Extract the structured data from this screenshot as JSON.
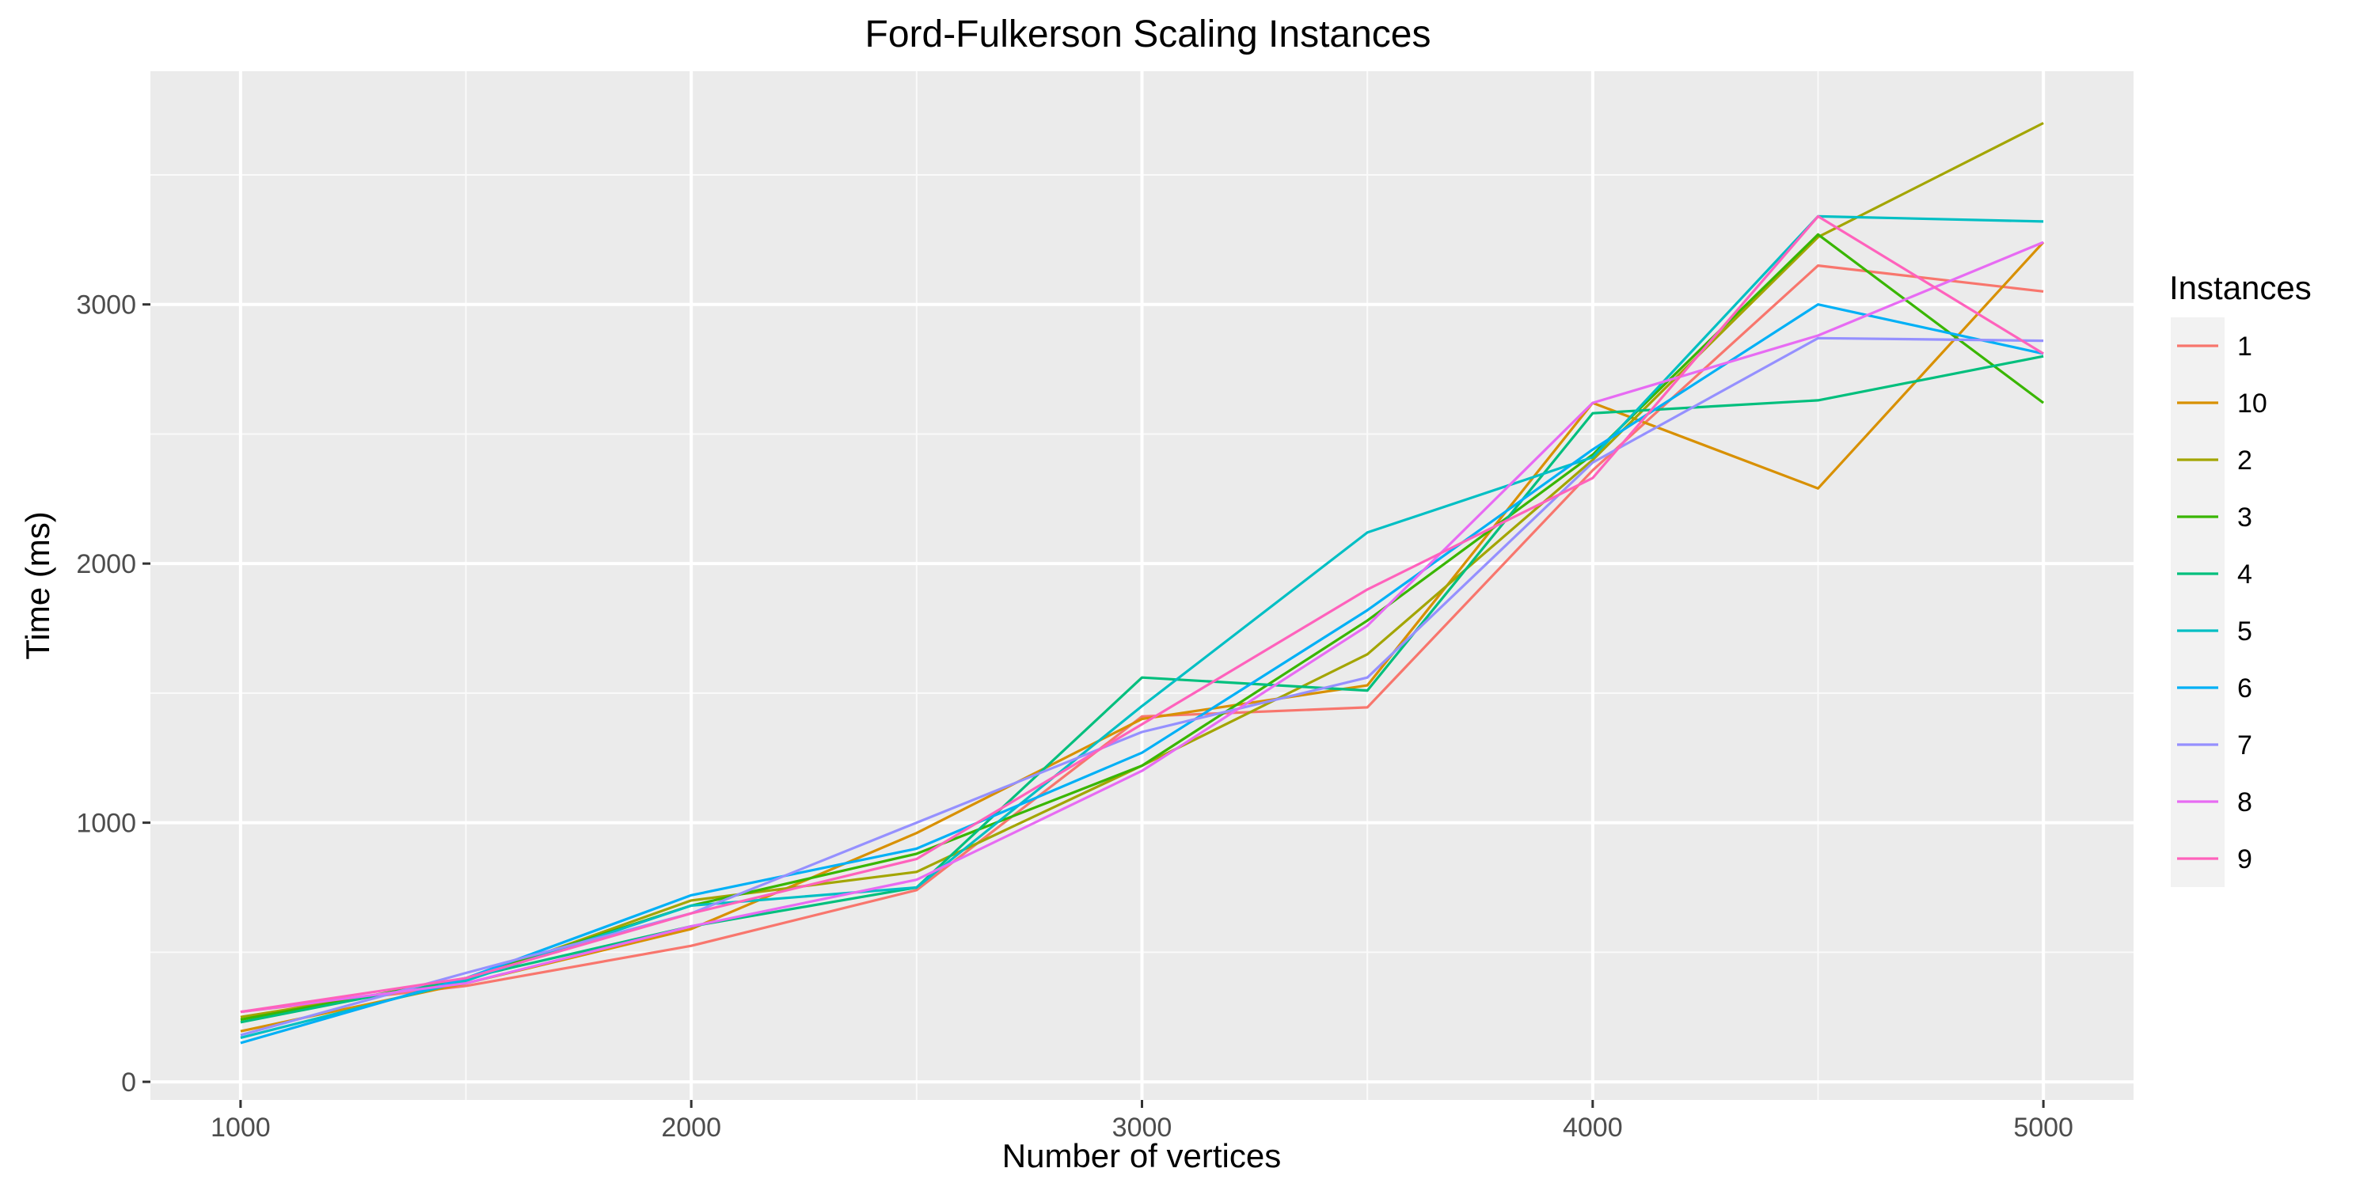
{
  "chart_data": {
    "type": "line",
    "title": "Ford-Fulkerson Scaling Instances",
    "xlabel": "Number of vertices",
    "ylabel": "Time (ms)",
    "xlim": [
      800,
      5200
    ],
    "ylim": [
      -70,
      3900
    ],
    "x_ticks": [
      1000,
      2000,
      3000,
      4000,
      5000
    ],
    "x_minor_ticks": [
      1500,
      2500,
      3500,
      4500
    ],
    "y_ticks": [
      0,
      1000,
      2000,
      3000
    ],
    "y_minor_ticks": [
      500,
      1500,
      2500,
      3500
    ],
    "grid": true,
    "background": "#ebebeb",
    "legend_title": "Instances",
    "legend_position": "right",
    "x": [
      1000,
      1500,
      2000,
      2500,
      3000,
      3500,
      4000,
      4500,
      5000
    ],
    "series": [
      {
        "name": "1",
        "color": "#F8766D",
        "values": [
          270,
          370,
          525,
          740,
          1410,
          1445,
          2360,
          3150,
          3050
        ]
      },
      {
        "name": "10",
        "color": "#D89000",
        "values": [
          195,
          380,
          590,
          960,
          1400,
          1530,
          2620,
          2290,
          3240
        ]
      },
      {
        "name": "2",
        "color": "#A3A500",
        "values": [
          250,
          390,
          700,
          810,
          1220,
          1650,
          2400,
          3260,
          3700
        ]
      },
      {
        "name": "3",
        "color": "#39B600",
        "values": [
          240,
          400,
          680,
          880,
          1220,
          1780,
          2420,
          3270,
          2620
        ]
      },
      {
        "name": "4",
        "color": "#00BF7D",
        "values": [
          230,
          400,
          600,
          750,
          1560,
          1510,
          2580,
          2630,
          2800
        ]
      },
      {
        "name": "5",
        "color": "#00BFC4",
        "values": [
          170,
          390,
          680,
          750,
          1450,
          2120,
          2410,
          3340,
          3320
        ]
      },
      {
        "name": "6",
        "color": "#00B0F6",
        "values": [
          150,
          400,
          720,
          900,
          1270,
          1820,
          2440,
          3000,
          2810
        ]
      },
      {
        "name": "7",
        "color": "#9590FF",
        "values": [
          180,
          420,
          650,
          1000,
          1350,
          1560,
          2390,
          2870,
          2860
        ]
      },
      {
        "name": "8",
        "color": "#E76BF3",
        "values": [
          270,
          380,
          600,
          780,
          1200,
          1760,
          2620,
          2880,
          3240
        ]
      },
      {
        "name": "9",
        "color": "#FF62BC",
        "values": [
          270,
          400,
          650,
          860,
          1380,
          1900,
          2330,
          3340,
          2810
        ]
      }
    ]
  }
}
